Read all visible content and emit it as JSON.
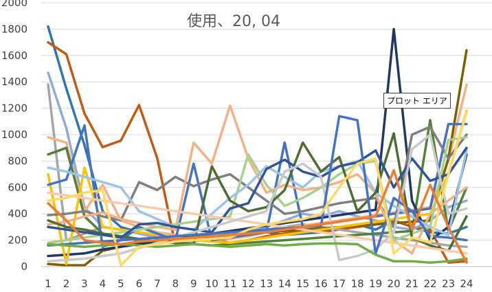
{
  "chart_data": {
    "type": "line",
    "title": "使用、20, 04",
    "xlabel": "",
    "ylabel": "",
    "categories": [
      "1",
      "2",
      "3",
      "4",
      "5",
      "6",
      "7",
      "8",
      "9",
      "10",
      "11",
      "12",
      "13",
      "14",
      "15",
      "16",
      "17",
      "18",
      "19",
      "20",
      "21",
      "22",
      "23",
      "24"
    ],
    "y_ticks": [
      "0",
      "200",
      "400",
      "600",
      "800",
      "1000",
      "1200",
      "1400",
      "1600",
      "1800",
      "2000"
    ],
    "ylim": [
      0,
      2000
    ],
    "grid": "horizontal",
    "legend": "none",
    "series": [
      {
        "color": "#2e75b6",
        "values": [
          1820,
          1350,
          920,
          420,
          300,
          260,
          210,
          180,
          200,
          220,
          230,
          250,
          260,
          240,
          250,
          260,
          300,
          320,
          280,
          350,
          300,
          260,
          250,
          300
        ]
      },
      {
        "color": "#c55a11",
        "values": [
          1700,
          1610,
          1160,
          905,
          955,
          1225,
          820,
          160,
          190,
          210,
          180,
          200,
          230,
          250,
          270,
          260,
          280,
          300,
          320,
          350,
          300,
          280,
          30,
          40
        ]
      },
      {
        "color": "#8faadc",
        "values": [
          1470,
          1050,
          450,
          300,
          280,
          250,
          220,
          200,
          190,
          210,
          230,
          260,
          300,
          350,
          400,
          380,
          420,
          380,
          350,
          300,
          280,
          350,
          450,
          500
        ]
      },
      {
        "color": "#a5a5a5",
        "values": [
          1380,
          200,
          250,
          300,
          280,
          260,
          240,
          220,
          200,
          210,
          230,
          250,
          280,
          300,
          320,
          300,
          280,
          260,
          240,
          220,
          200,
          180,
          160,
          150
        ]
      },
      {
        "color": "#f4b183",
        "values": [
          980,
          940,
          420,
          620,
          350,
          300,
          260,
          240,
          220,
          200,
          210,
          230,
          260,
          290,
          310,
          330,
          350,
          370,
          390,
          410,
          430,
          450,
          800,
          1380
        ]
      },
      {
        "color": "#548235",
        "values": [
          850,
          900,
          380,
          250,
          220,
          200,
          190,
          180,
          170,
          160,
          170,
          180,
          190,
          200,
          210,
          220,
          230,
          240,
          250,
          260,
          270,
          1110,
          270,
          600
        ]
      },
      {
        "color": "#7f6000",
        "values": [
          20,
          10,
          10,
          120,
          150,
          180,
          200,
          210,
          220,
          230,
          240,
          250,
          260,
          270,
          280,
          290,
          300,
          310,
          320,
          330,
          340,
          350,
          820,
          1640
        ]
      },
      {
        "color": "#203864",
        "values": [
          80,
          90,
          100,
          130,
          150,
          170,
          190,
          210,
          230,
          250,
          270,
          290,
          310,
          330,
          350,
          370,
          390,
          410,
          430,
          1800,
          500,
          200,
          300,
          850
        ]
      },
      {
        "color": "#ffc000",
        "values": [
          700,
          20,
          750,
          300,
          280,
          260,
          240,
          220,
          200,
          190,
          180,
          200,
          220,
          240,
          260,
          280,
          300,
          320,
          340,
          360,
          380,
          400,
          700,
          1180
        ]
      },
      {
        "color": "#4472c4",
        "values": [
          620,
          660,
          1070,
          150,
          200,
          300,
          250,
          200,
          780,
          200,
          220,
          240,
          260,
          940,
          300,
          320,
          340,
          360,
          380,
          400,
          420,
          440,
          1080,
          1080
        ]
      },
      {
        "color": "#7f7f7f",
        "values": [
          390,
          400,
          420,
          380,
          350,
          640,
          580,
          680,
          610,
          660,
          700,
          600,
          500,
          400,
          420,
          450,
          480,
          500,
          520,
          300,
          1000,
          1060,
          820,
          1000
        ]
      },
      {
        "color": "#f4b183",
        "values": [
          320,
          340,
          380,
          410,
          360,
          330,
          300,
          280,
          940,
          780,
          1220,
          820,
          560,
          620,
          580,
          600,
          640,
          700,
          560,
          200,
          100,
          400,
          500,
          600
        ]
      },
      {
        "color": "#a9d18e",
        "values": [
          180,
          200,
          220,
          240,
          260,
          280,
          300,
          320,
          340,
          360,
          380,
          850,
          620,
          460,
          520,
          600,
          700,
          780,
          800,
          200,
          250,
          300,
          960,
          980
        ]
      },
      {
        "color": "#9dc3e6",
        "values": [
          750,
          720,
          680,
          640,
          600,
          420,
          360,
          300,
          280,
          400,
          520,
          620,
          760,
          680,
          600,
          720,
          760,
          800,
          560,
          460,
          380,
          300,
          240,
          880
        ]
      },
      {
        "color": "#4e6d31",
        "values": [
          350,
          300,
          280,
          250,
          230,
          210,
          190,
          180,
          170,
          760,
          500,
          420,
          450,
          580,
          940,
          720,
          830,
          420,
          560,
          1010,
          220,
          160,
          120,
          380
        ]
      },
      {
        "color": "#2f5597",
        "values": [
          300,
          280,
          260,
          240,
          220,
          320,
          330,
          300,
          280,
          260,
          440,
          480,
          740,
          810,
          720,
          680,
          760,
          790,
          880,
          600,
          820,
          650,
          700,
          900
        ]
      },
      {
        "color": "#f8cbad",
        "values": [
          560,
          540,
          520,
          500,
          480,
          460,
          440,
          420,
          400,
          380,
          360,
          340,
          320,
          300,
          280,
          260,
          240,
          220,
          200,
          180,
          160,
          140,
          120,
          100
        ]
      },
      {
        "color": "#c9c9c9",
        "values": [
          40,
          50,
          60,
          80,
          100,
          140,
          180,
          220,
          260,
          300,
          340,
          380,
          420,
          720,
          780,
          680,
          50,
          80,
          130,
          260,
          890,
          1000,
          400,
          440
        ]
      },
      {
        "color": "#4472c4",
        "values": [
          160,
          170,
          180,
          190,
          200,
          210,
          220,
          230,
          240,
          250,
          260,
          270,
          280,
          290,
          300,
          310,
          1140,
          1110,
          100,
          520,
          420,
          230,
          220,
          200
        ]
      },
      {
        "color": "#70ad47",
        "values": [
          170,
          160,
          150,
          160,
          170,
          160,
          150,
          160,
          170,
          160,
          150,
          160,
          170,
          160,
          170,
          175,
          175,
          170,
          90,
          40,
          40,
          30,
          40,
          60
        ]
      },
      {
        "color": "#ffd966",
        "values": [
          500,
          520,
          560,
          580,
          10,
          150,
          170,
          190,
          200,
          210,
          220,
          280,
          320,
          340,
          360,
          400,
          600,
          780,
          820,
          100,
          220,
          180,
          700,
          1170
        ]
      },
      {
        "color": "#ed7d31",
        "values": [
          480,
          350,
          200,
          180,
          170,
          190,
          200,
          210,
          220,
          230,
          240,
          250,
          260,
          280,
          300,
          320,
          340,
          360,
          380,
          730,
          280,
          620,
          300,
          30
        ]
      }
    ]
  },
  "tooltip": {
    "text": "プロット エリア"
  }
}
